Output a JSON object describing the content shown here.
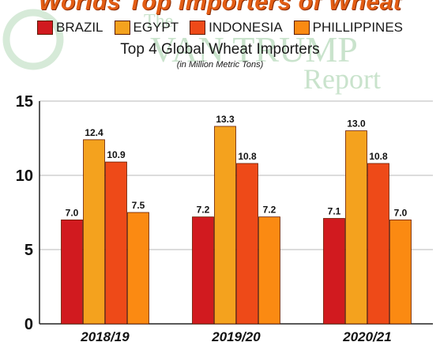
{
  "banner_title": "Worlds Top Importers of Wheat",
  "watermark": {
    "line1": "The",
    "line2": "VAN TRUMP",
    "line3": "Report"
  },
  "chart_data": {
    "type": "bar",
    "title": "Top 4 Global Wheat Importers",
    "subtitle": "(in Million Metric Tons)",
    "xlabel": "",
    "ylabel": "",
    "categories": [
      "2018/19",
      "2019/20",
      "2020/21"
    ],
    "series": [
      {
        "name": "BRAZIL",
        "color": "#d11a1f",
        "values": [
          7.0,
          7.2,
          7.1
        ]
      },
      {
        "name": "EGYPT",
        "color": "#f4a21e",
        "values": [
          12.4,
          13.3,
          13.0
        ]
      },
      {
        "name": "INDONESIA",
        "color": "#ee4a18",
        "values": [
          10.9,
          10.8,
          10.8
        ]
      },
      {
        "name": "PHILLIPPINES",
        "color": "#fb8a12",
        "values": [
          7.5,
          7.2,
          7.0
        ]
      }
    ],
    "value_labels": [
      [
        "7.0",
        "7.2",
        "7.1"
      ],
      [
        "12.4",
        "13.3",
        "13.0"
      ],
      [
        "10.9",
        "10.8",
        "10.8"
      ],
      [
        "7.5",
        "7.2",
        "7.0"
      ]
    ],
    "ylim": [
      0,
      15
    ],
    "yticks": [
      0,
      5,
      10,
      15
    ],
    "ytick_labels": [
      "0",
      "5",
      "10",
      "15"
    ],
    "grid": true,
    "legend_position": "top"
  }
}
